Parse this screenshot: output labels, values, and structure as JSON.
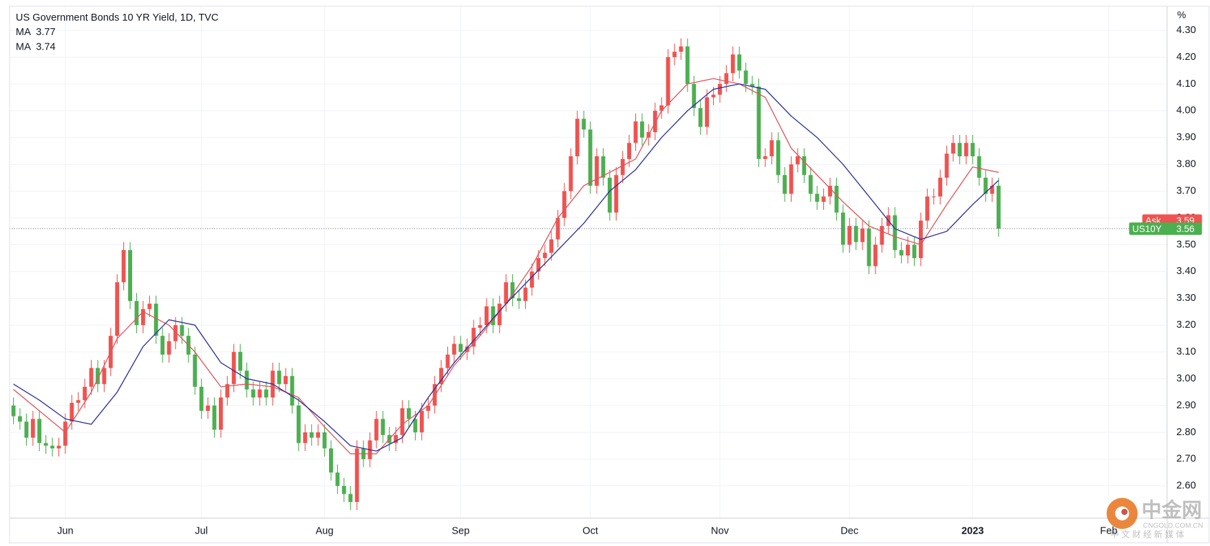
{
  "chart_data": {
    "type": "candlestick",
    "title": "US Government Bonds 10 YR Yield, 1D, TVC",
    "y_unit": "%",
    "grid": true,
    "up_color": "#ef5350",
    "down_color": "#4caf50",
    "xlim": [
      -0.6,
      178
    ],
    "xticks": [
      {
        "value": 8,
        "label": "Jun"
      },
      {
        "value": 29,
        "label": "Jul"
      },
      {
        "value": 48,
        "label": "Aug"
      },
      {
        "value": 69,
        "label": "Sep"
      },
      {
        "value": 89,
        "label": "Oct"
      },
      {
        "value": 109,
        "label": "Nov"
      },
      {
        "value": 129,
        "label": "Dec"
      },
      {
        "value": 148,
        "label": "2023"
      },
      {
        "value": 169,
        "label": "Feb"
      }
    ],
    "ylim": [
      2.48,
      4.39
    ],
    "yticks": [
      {
        "value": 2.6,
        "label": "2.60"
      },
      {
        "value": 2.7,
        "label": "2.70"
      },
      {
        "value": 2.8,
        "label": "2.80"
      },
      {
        "value": 2.9,
        "label": "2.90"
      },
      {
        "value": 3.0,
        "label": "3.00"
      },
      {
        "value": 3.1,
        "label": "3.10"
      },
      {
        "value": 3.2,
        "label": "3.20"
      },
      {
        "value": 3.3,
        "label": "3.30"
      },
      {
        "value": 3.4,
        "label": "3.40"
      },
      {
        "value": 3.5,
        "label": "3.50"
      },
      {
        "value": 3.6,
        "label": "3.60"
      },
      {
        "value": 3.7,
        "label": "3.70"
      },
      {
        "value": 3.8,
        "label": "3.80"
      },
      {
        "value": 3.9,
        "label": "3.90"
      },
      {
        "value": 4.0,
        "label": "4.00"
      },
      {
        "value": 4.1,
        "label": "4.10"
      },
      {
        "value": 4.2,
        "label": "4.20"
      },
      {
        "value": 4.3,
        "label": "4.30"
      }
    ],
    "open": [
      2.9,
      2.86,
      2.84,
      2.78,
      2.85,
      2.76,
      2.75,
      2.74,
      2.75,
      2.84,
      2.91,
      2.92,
      2.97,
      3.04,
      2.98,
      3.04,
      3.16,
      3.36,
      3.48,
      3.29,
      3.2,
      3.26,
      3.28,
      3.16,
      3.09,
      3.14,
      3.2,
      3.16,
      3.09,
      2.97,
      2.88,
      2.9,
      2.81,
      2.93,
      2.98,
      3.1,
      3.03,
      2.96,
      2.93,
      2.96,
      2.93,
      3.03,
      2.98,
      3.01,
      2.9,
      2.76,
      2.8,
      2.78,
      2.8,
      2.74,
      2.65,
      2.6,
      2.57,
      2.54,
      2.74,
      2.7,
      2.77,
      2.85,
      2.79,
      2.76,
      2.79,
      2.89,
      2.85,
      2.8,
      2.88,
      2.9,
      2.98,
      3.04,
      3.09,
      3.13,
      3.1,
      3.12,
      3.19,
      3.2,
      3.27,
      3.2,
      3.28,
      3.36,
      3.3,
      3.29,
      3.34,
      3.4,
      3.45,
      3.47,
      3.52,
      3.6,
      3.7,
      3.83,
      3.97,
      3.93,
      3.72,
      3.83,
      3.75,
      3.62,
      3.76,
      3.82,
      3.88,
      3.96,
      3.9,
      3.92,
      4.0,
      4.02,
      4.2,
      4.22,
      4.24,
      4.1,
      4.01,
      3.94,
      4.05,
      4.06,
      4.1,
      4.14,
      4.21,
      4.15,
      4.1,
      4.09,
      3.82,
      3.83,
      3.89,
      3.76,
      3.69,
      3.8,
      3.83,
      3.76,
      3.69,
      3.66,
      3.68,
      3.72,
      3.62,
      3.5,
      3.57,
      3.51,
      3.56,
      3.42,
      3.5,
      3.57,
      3.61,
      3.48,
      3.46,
      3.5,
      3.45,
      3.59,
      3.68,
      3.68,
      3.75,
      3.84,
      3.88,
      3.83,
      3.88,
      3.83,
      3.75,
      3.69,
      3.72
    ],
    "high": [
      2.93,
      2.89,
      2.87,
      2.88,
      2.88,
      2.79,
      2.78,
      2.78,
      2.87,
      2.94,
      2.95,
      3.0,
      3.07,
      3.07,
      3.07,
      3.19,
      3.39,
      3.51,
      3.51,
      3.32,
      3.29,
      3.31,
      3.31,
      3.19,
      3.17,
      3.23,
      3.23,
      3.19,
      3.12,
      3.0,
      2.93,
      2.93,
      2.96,
      3.01,
      3.13,
      3.13,
      3.06,
      2.99,
      2.99,
      2.99,
      3.06,
      3.06,
      3.04,
      3.04,
      2.93,
      2.83,
      2.83,
      2.83,
      2.83,
      2.77,
      2.68,
      2.63,
      2.6,
      2.77,
      2.77,
      2.8,
      2.88,
      2.88,
      2.82,
      2.82,
      2.92,
      2.92,
      2.88,
      2.91,
      2.93,
      3.01,
      3.07,
      3.12,
      3.16,
      3.16,
      3.15,
      3.22,
      3.23,
      3.3,
      3.3,
      3.31,
      3.39,
      3.39,
      3.33,
      3.37,
      3.43,
      3.48,
      3.5,
      3.55,
      3.63,
      3.73,
      3.86,
      4.0,
      4.0,
      3.96,
      3.86,
      3.86,
      3.78,
      3.79,
      3.85,
      3.91,
      3.99,
      3.99,
      3.95,
      4.03,
      4.05,
      4.23,
      4.25,
      4.27,
      4.27,
      4.13,
      4.04,
      4.08,
      4.09,
      4.13,
      4.17,
      4.24,
      4.24,
      4.18,
      4.13,
      4.12,
      3.86,
      3.92,
      3.92,
      3.79,
      3.83,
      3.86,
      3.86,
      3.79,
      3.72,
      3.71,
      3.75,
      3.75,
      3.65,
      3.6,
      3.6,
      3.59,
      3.59,
      3.53,
      3.6,
      3.64,
      3.64,
      3.51,
      3.53,
      3.53,
      3.62,
      3.71,
      3.71,
      3.78,
      3.87,
      3.91,
      3.91,
      3.91,
      3.91,
      3.86,
      3.78,
      3.75,
      3.75
    ],
    "low": [
      2.83,
      2.81,
      2.75,
      2.75,
      2.73,
      2.72,
      2.71,
      2.71,
      2.72,
      2.81,
      2.88,
      2.89,
      2.94,
      2.95,
      2.95,
      3.01,
      3.13,
      3.33,
      3.26,
      3.17,
      3.17,
      3.23,
      3.13,
      3.06,
      3.06,
      3.11,
      3.13,
      3.06,
      2.94,
      2.85,
      2.85,
      2.78,
      2.78,
      2.9,
      2.95,
      3.0,
      2.93,
      2.9,
      2.9,
      2.9,
      2.9,
      2.95,
      2.95,
      2.87,
      2.73,
      2.73,
      2.75,
      2.75,
      2.71,
      2.62,
      2.57,
      2.54,
      2.51,
      2.51,
      2.67,
      2.67,
      2.74,
      2.76,
      2.73,
      2.73,
      2.76,
      2.82,
      2.77,
      2.77,
      2.85,
      2.87,
      2.95,
      3.01,
      3.06,
      3.07,
      3.07,
      3.09,
      3.16,
      3.17,
      3.17,
      3.17,
      3.25,
      3.27,
      3.26,
      3.26,
      3.31,
      3.37,
      3.42,
      3.44,
      3.49,
      3.57,
      3.67,
      3.8,
      3.9,
      3.69,
      3.69,
      3.72,
      3.59,
      3.59,
      3.73,
      3.79,
      3.85,
      3.87,
      3.87,
      3.89,
      3.97,
      3.99,
      4.17,
      4.19,
      4.07,
      3.98,
      3.91,
      3.91,
      4.02,
      4.03,
      4.07,
      4.11,
      4.12,
      4.07,
      4.06,
      3.79,
      3.79,
      3.8,
      3.73,
      3.66,
      3.66,
      3.77,
      3.73,
      3.66,
      3.63,
      3.63,
      3.65,
      3.59,
      3.47,
      3.47,
      3.48,
      3.48,
      3.39,
      3.39,
      3.47,
      3.54,
      3.45,
      3.43,
      3.43,
      3.42,
      3.42,
      3.56,
      3.65,
      3.65,
      3.72,
      3.81,
      3.8,
      3.8,
      3.8,
      3.72,
      3.66,
      3.66,
      3.53
    ],
    "close": [
      2.86,
      2.84,
      2.78,
      2.85,
      2.76,
      2.75,
      2.74,
      2.75,
      2.84,
      2.91,
      2.92,
      2.97,
      3.04,
      2.98,
      3.04,
      3.16,
      3.36,
      3.48,
      3.29,
      3.2,
      3.26,
      3.28,
      3.16,
      3.09,
      3.14,
      3.2,
      3.16,
      3.09,
      2.97,
      2.88,
      2.9,
      2.81,
      2.93,
      2.98,
      3.1,
      3.03,
      2.96,
      2.93,
      2.96,
      2.93,
      3.03,
      2.98,
      3.01,
      2.9,
      2.76,
      2.8,
      2.78,
      2.8,
      2.74,
      2.65,
      2.6,
      2.57,
      2.54,
      2.74,
      2.7,
      2.77,
      2.85,
      2.79,
      2.76,
      2.79,
      2.89,
      2.85,
      2.8,
      2.88,
      2.9,
      2.98,
      3.04,
      3.09,
      3.13,
      3.1,
      3.12,
      3.19,
      3.2,
      3.27,
      3.2,
      3.28,
      3.36,
      3.3,
      3.29,
      3.34,
      3.4,
      3.45,
      3.47,
      3.52,
      3.6,
      3.7,
      3.83,
      3.97,
      3.93,
      3.72,
      3.83,
      3.75,
      3.62,
      3.76,
      3.82,
      3.88,
      3.96,
      3.9,
      3.92,
      4.0,
      4.02,
      4.2,
      4.22,
      4.24,
      4.1,
      4.01,
      3.94,
      4.05,
      4.06,
      4.1,
      4.14,
      4.21,
      4.15,
      4.1,
      4.09,
      3.82,
      3.83,
      3.89,
      3.76,
      3.69,
      3.8,
      3.83,
      3.76,
      3.69,
      3.66,
      3.68,
      3.72,
      3.62,
      3.5,
      3.57,
      3.51,
      3.56,
      3.42,
      3.5,
      3.57,
      3.61,
      3.48,
      3.46,
      3.5,
      3.45,
      3.59,
      3.68,
      3.68,
      3.75,
      3.84,
      3.88,
      3.83,
      3.88,
      3.83,
      3.75,
      3.69,
      3.72,
      3.56
    ],
    "overlays": [
      {
        "name": "MA",
        "last": 3.77,
        "color": "#e0555a",
        "x": [
          0,
          4,
          8,
          12,
          16,
          20,
          24,
          28,
          32,
          36,
          40,
          44,
          48,
          52,
          56,
          60,
          64,
          68,
          72,
          76,
          80,
          84,
          88,
          92,
          96,
          100,
          104,
          108,
          112,
          116,
          120,
          124,
          128,
          132,
          136,
          140,
          144,
          148,
          152
        ],
        "values": [
          2.96,
          2.88,
          2.8,
          2.95,
          3.15,
          3.25,
          3.2,
          3.1,
          2.97,
          2.98,
          2.97,
          2.93,
          2.82,
          2.72,
          2.72,
          2.83,
          2.9,
          3.05,
          3.16,
          3.28,
          3.42,
          3.6,
          3.72,
          3.77,
          3.82,
          4.0,
          4.1,
          4.12,
          4.1,
          4.05,
          3.86,
          3.76,
          3.66,
          3.57,
          3.53,
          3.5,
          3.65,
          3.79,
          3.77
        ]
      },
      {
        "name": "MA",
        "last": 3.74,
        "color": "#2b2f9c",
        "x": [
          0,
          4,
          8,
          12,
          16,
          20,
          24,
          28,
          32,
          36,
          40,
          44,
          48,
          52,
          56,
          60,
          64,
          68,
          72,
          76,
          80,
          84,
          88,
          92,
          96,
          100,
          104,
          108,
          112,
          116,
          120,
          124,
          128,
          132,
          136,
          140,
          144,
          148,
          152
        ],
        "values": [
          2.98,
          2.92,
          2.85,
          2.83,
          2.95,
          3.12,
          3.22,
          3.2,
          3.06,
          3.0,
          2.98,
          2.92,
          2.84,
          2.75,
          2.73,
          2.78,
          2.93,
          3.06,
          3.17,
          3.28,
          3.38,
          3.48,
          3.58,
          3.7,
          3.78,
          3.9,
          4.0,
          4.08,
          4.1,
          4.08,
          3.98,
          3.9,
          3.8,
          3.68,
          3.56,
          3.52,
          3.55,
          3.65,
          3.74
        ]
      }
    ],
    "price_labels": [
      {
        "label": "Ask",
        "value": 3.59,
        "color": "#f05350",
        "dotted_line": false
      },
      {
        "label": "US10Y",
        "value": 3.56,
        "color": "#4caf50",
        "dotted_line": true
      }
    ],
    "watermark": {
      "name": "中金网",
      "site": "CNGOLD.COM.CN",
      "tagline": "中 文 财 经 新 媒 体"
    }
  }
}
